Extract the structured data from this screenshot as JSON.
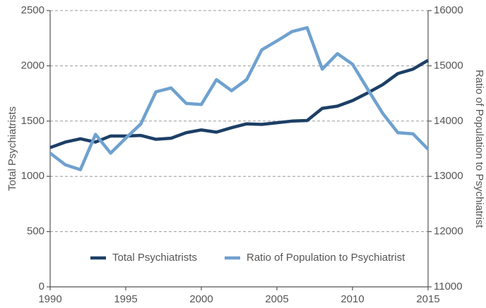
{
  "chart_data": {
    "type": "line",
    "x": [
      1990,
      1991,
      1992,
      1993,
      1994,
      1995,
      1996,
      1997,
      1998,
      1999,
      2000,
      2001,
      2002,
      2003,
      2004,
      2005,
      2006,
      2007,
      2008,
      2009,
      2010,
      2011,
      2012,
      2013,
      2014,
      2015
    ],
    "series": [
      {
        "name": "Total Psychiatrists",
        "color": "#1d3f66",
        "values": [
          1260,
          1310,
          1340,
          1310,
          1365,
          1365,
          1370,
          1335,
          1345,
          1395,
          1420,
          1400,
          1440,
          1475,
          1470,
          1485,
          1500,
          1505,
          1615,
          1635,
          1685,
          1755,
          1830,
          1930,
          1970,
          2050
        ]
      },
      {
        "name": "Ratio of Population to Psychiatrist",
        "color": "#6fa1cf",
        "axis": "y2",
        "values": [
          13420,
          13210,
          13120,
          13760,
          13420,
          13690,
          13950,
          14530,
          14600,
          14320,
          14300,
          14750,
          14550,
          14750,
          15290,
          15450,
          15620,
          15690,
          14940,
          15220,
          15030,
          14580,
          14140,
          13790,
          13770,
          13490
        ]
      }
    ],
    "ylabel": "Total Psychiatrists",
    "y2label": "Ratio of Population to Psychiatrist",
    "xlim": [
      1990,
      2015
    ],
    "xticks": [
      1990,
      1995,
      2000,
      2005,
      2010,
      2015
    ],
    "ylim": [
      0,
      2500
    ],
    "yticks": [
      0,
      500,
      1000,
      1500,
      2000,
      2500
    ],
    "y2lim": [
      11000,
      16000
    ],
    "y2ticks": [
      11000,
      12000,
      13000,
      14000,
      15000,
      16000
    ],
    "grid": true,
    "legend": "bottom"
  }
}
